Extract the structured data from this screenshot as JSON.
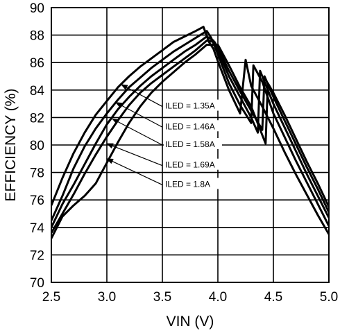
{
  "chart_data": {
    "type": "line",
    "xlabel": "VIN (V)",
    "ylabel": "EFFICIENCY (%)",
    "xlim": [
      2.5,
      5.0
    ],
    "ylim": [
      70,
      90
    ],
    "xticks": [
      "2.5",
      "3.0",
      "3.5",
      "4.0",
      "4.5",
      "5.0"
    ],
    "yticks": [
      "70",
      "72",
      "74",
      "76",
      "78",
      "80",
      "82",
      "84",
      "86",
      "88",
      "90"
    ],
    "grid": true,
    "legend": "none",
    "colors": {
      "line": "#000000",
      "grid": "#000000",
      "background": "#ffffff"
    },
    "series": [
      {
        "name": "ILED = 1.35A",
        "points": [
          [
            2.5,
            75.6
          ],
          [
            2.6,
            77.6
          ],
          [
            2.7,
            79.4
          ],
          [
            2.8,
            80.9
          ],
          [
            2.9,
            82.2
          ],
          [
            3.0,
            83.2
          ],
          [
            3.1,
            84.2
          ],
          [
            3.2,
            85.0
          ],
          [
            3.3,
            85.7
          ],
          [
            3.4,
            86.3
          ],
          [
            3.5,
            86.9
          ],
          [
            3.6,
            87.5
          ],
          [
            3.7,
            87.9
          ],
          [
            3.8,
            88.3
          ],
          [
            3.87,
            88.6
          ],
          [
            3.92,
            87.5
          ],
          [
            3.96,
            87.0
          ],
          [
            4.0,
            86.1
          ],
          [
            4.1,
            84.0
          ],
          [
            4.2,
            82.3
          ],
          [
            4.25,
            86.2
          ],
          [
            4.3,
            84.3
          ],
          [
            4.4,
            82.8
          ],
          [
            4.5,
            81.2
          ],
          [
            4.6,
            79.5
          ],
          [
            4.7,
            77.9
          ],
          [
            4.8,
            76.4
          ],
          [
            4.9,
            74.9
          ],
          [
            5.0,
            73.5
          ]
        ]
      },
      {
        "name": "ILED = 1.46A",
        "points": [
          [
            2.5,
            74.5
          ],
          [
            2.6,
            76.3
          ],
          [
            2.7,
            78.3
          ],
          [
            2.8,
            79.9
          ],
          [
            2.9,
            81.2
          ],
          [
            3.0,
            82.3
          ],
          [
            3.1,
            83.3
          ],
          [
            3.2,
            84.2
          ],
          [
            3.3,
            84.9
          ],
          [
            3.4,
            85.6
          ],
          [
            3.5,
            86.2
          ],
          [
            3.6,
            86.8
          ],
          [
            3.7,
            87.3
          ],
          [
            3.8,
            87.8
          ],
          [
            3.9,
            88.3
          ],
          [
            3.94,
            87.8
          ],
          [
            4.0,
            86.6
          ],
          [
            4.1,
            84.5
          ],
          [
            4.2,
            82.9
          ],
          [
            4.3,
            81.6
          ],
          [
            4.32,
            85.8
          ],
          [
            4.4,
            84.6
          ],
          [
            4.5,
            82.3
          ],
          [
            4.6,
            80.6
          ],
          [
            4.7,
            78.9
          ],
          [
            4.8,
            77.3
          ],
          [
            4.9,
            75.7
          ],
          [
            5.0,
            74.1
          ]
        ]
      },
      {
        "name": "ILED = 1.58A",
        "points": [
          [
            2.5,
            74.0
          ],
          [
            2.6,
            75.7
          ],
          [
            2.7,
            77.1
          ],
          [
            2.8,
            78.6
          ],
          [
            2.9,
            80.1
          ],
          [
            3.0,
            81.5
          ],
          [
            3.1,
            82.6
          ],
          [
            3.2,
            83.5
          ],
          [
            3.3,
            84.3
          ],
          [
            3.4,
            85.0
          ],
          [
            3.5,
            85.6
          ],
          [
            3.6,
            86.2
          ],
          [
            3.7,
            86.8
          ],
          [
            3.8,
            87.3
          ],
          [
            3.9,
            87.9
          ],
          [
            3.96,
            87.6
          ],
          [
            4.0,
            86.9
          ],
          [
            4.1,
            85.0
          ],
          [
            4.2,
            83.5
          ],
          [
            4.3,
            82.0
          ],
          [
            4.36,
            80.9
          ],
          [
            4.38,
            85.4
          ],
          [
            4.45,
            84.0
          ],
          [
            4.5,
            83.0
          ],
          [
            4.6,
            81.3
          ],
          [
            4.7,
            79.6
          ],
          [
            4.8,
            77.9
          ],
          [
            4.9,
            76.3
          ],
          [
            5.0,
            74.7
          ]
        ]
      },
      {
        "name": "ILED = 1.69A",
        "points": [
          [
            2.5,
            73.6
          ],
          [
            2.6,
            75.0
          ],
          [
            2.7,
            76.4
          ],
          [
            2.8,
            77.9
          ],
          [
            2.9,
            79.3
          ],
          [
            3.0,
            80.6
          ],
          [
            3.1,
            81.8
          ],
          [
            3.2,
            82.9
          ],
          [
            3.3,
            83.8
          ],
          [
            3.4,
            84.5
          ],
          [
            3.5,
            85.1
          ],
          [
            3.6,
            85.7
          ],
          [
            3.7,
            86.3
          ],
          [
            3.8,
            86.9
          ],
          [
            3.9,
            87.6
          ],
          [
            3.97,
            87.5
          ],
          [
            4.0,
            87.1
          ],
          [
            4.1,
            85.4
          ],
          [
            4.2,
            83.9
          ],
          [
            4.3,
            82.5
          ],
          [
            4.4,
            81.1
          ],
          [
            4.42,
            85.0
          ],
          [
            4.5,
            83.5
          ],
          [
            4.6,
            81.8
          ],
          [
            4.7,
            80.1
          ],
          [
            4.8,
            78.4
          ],
          [
            4.9,
            76.8
          ],
          [
            5.0,
            75.1
          ]
        ]
      },
      {
        "name": "ILED = 1.8A",
        "points": [
          [
            2.5,
            73.2
          ],
          [
            2.6,
            74.8
          ],
          [
            2.7,
            75.6
          ],
          [
            2.8,
            76.3
          ],
          [
            2.9,
            77.2
          ],
          [
            3.0,
            78.7
          ],
          [
            3.1,
            80.2
          ],
          [
            3.2,
            81.6
          ],
          [
            3.3,
            82.8
          ],
          [
            3.4,
            83.8
          ],
          [
            3.5,
            84.6
          ],
          [
            3.6,
            85.3
          ],
          [
            3.7,
            86.0
          ],
          [
            3.8,
            86.6
          ],
          [
            3.9,
            87.3
          ],
          [
            3.98,
            87.3
          ],
          [
            4.0,
            87.3
          ],
          [
            4.1,
            85.8
          ],
          [
            4.2,
            84.2
          ],
          [
            4.3,
            82.8
          ],
          [
            4.43,
            80.1
          ],
          [
            4.45,
            84.5
          ],
          [
            4.5,
            83.8
          ],
          [
            4.6,
            82.2
          ],
          [
            4.7,
            80.5
          ],
          [
            4.8,
            78.8
          ],
          [
            4.9,
            77.2
          ],
          [
            5.0,
            75.5
          ]
        ]
      }
    ],
    "annotations": [
      {
        "text": "ILED = 1.35A",
        "label_at": [
          3.5,
          82.8
        ],
        "arrow_to": [
          3.13,
          84.4
        ]
      },
      {
        "text": "ILED = 1.46A",
        "label_at": [
          3.5,
          81.3
        ],
        "arrow_to": [
          3.08,
          83.1
        ]
      },
      {
        "text": "ILED = 1.58A",
        "label_at": [
          3.5,
          80.0
        ],
        "arrow_to": [
          3.05,
          81.9
        ]
      },
      {
        "text": "ILED = 1.69A",
        "label_at": [
          3.5,
          78.5
        ],
        "arrow_to": [
          3.0,
          80.1
        ]
      },
      {
        "text": "ILED = 1.8A",
        "label_at": [
          3.5,
          77.1
        ],
        "arrow_to": [
          3.0,
          79.0
        ]
      }
    ]
  }
}
